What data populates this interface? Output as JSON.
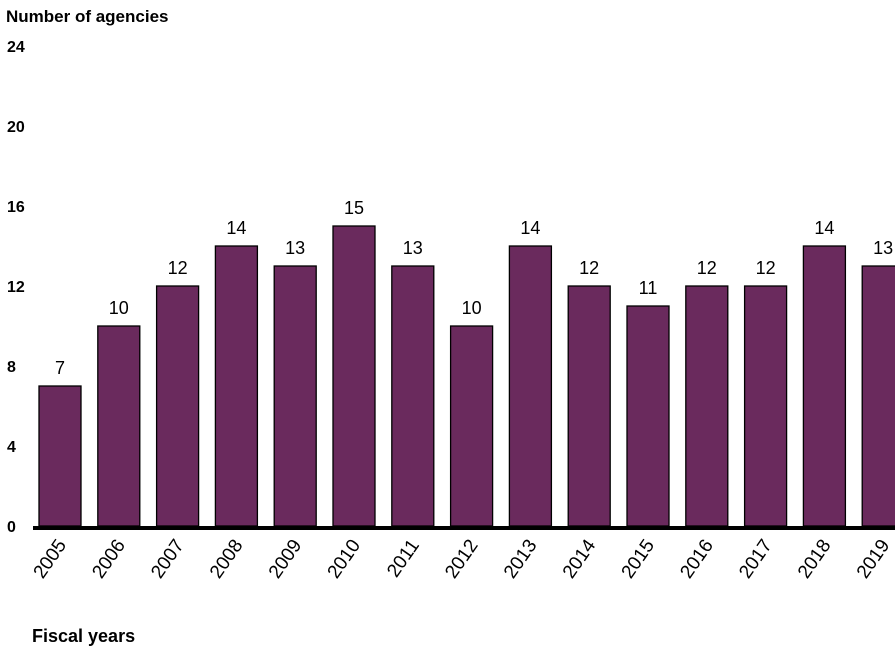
{
  "chart_data": {
    "type": "bar",
    "ylabel": "Number of agencies",
    "xlabel": "Fiscal years",
    "categories": [
      "2005",
      "2006",
      "2007",
      "2008",
      "2009",
      "2010",
      "2011",
      "2012",
      "2013",
      "2014",
      "2015",
      "2016",
      "2017",
      "2018",
      "2019"
    ],
    "values": [
      7,
      10,
      12,
      14,
      13,
      15,
      13,
      10,
      14,
      12,
      11,
      12,
      12,
      14,
      13
    ],
    "yticks": [
      0,
      4,
      8,
      12,
      16,
      20,
      24
    ],
    "ylim": [
      0,
      24
    ],
    "grid": false,
    "legend": "none",
    "bar_color": "#6a2a5d",
    "axis_color": "#000000"
  }
}
